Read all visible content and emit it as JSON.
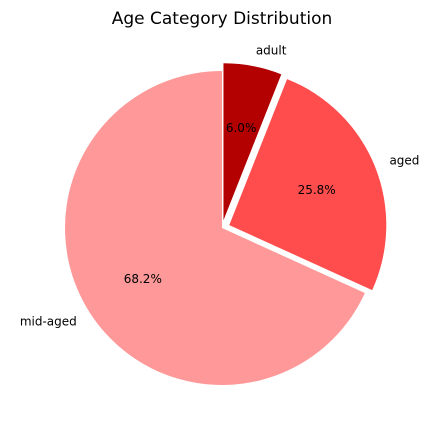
{
  "chart_data": {
    "type": "pie",
    "title": "Age Category Distribution",
    "start_angle_deg": 90,
    "direction": "clockwise",
    "slices": [
      {
        "label": "adult",
        "value": 6.0,
        "pct_label": "6.0%",
        "color": "#b30000",
        "explode": 0.05
      },
      {
        "label": "aged",
        "value": 25.8,
        "pct_label": "25.8%",
        "color": "#ff4d4d",
        "explode": 0.05
      },
      {
        "label": "mid-aged",
        "value": 68.2,
        "pct_label": "68.2%",
        "color": "#ff9999",
        "explode": 0.0
      }
    ]
  }
}
